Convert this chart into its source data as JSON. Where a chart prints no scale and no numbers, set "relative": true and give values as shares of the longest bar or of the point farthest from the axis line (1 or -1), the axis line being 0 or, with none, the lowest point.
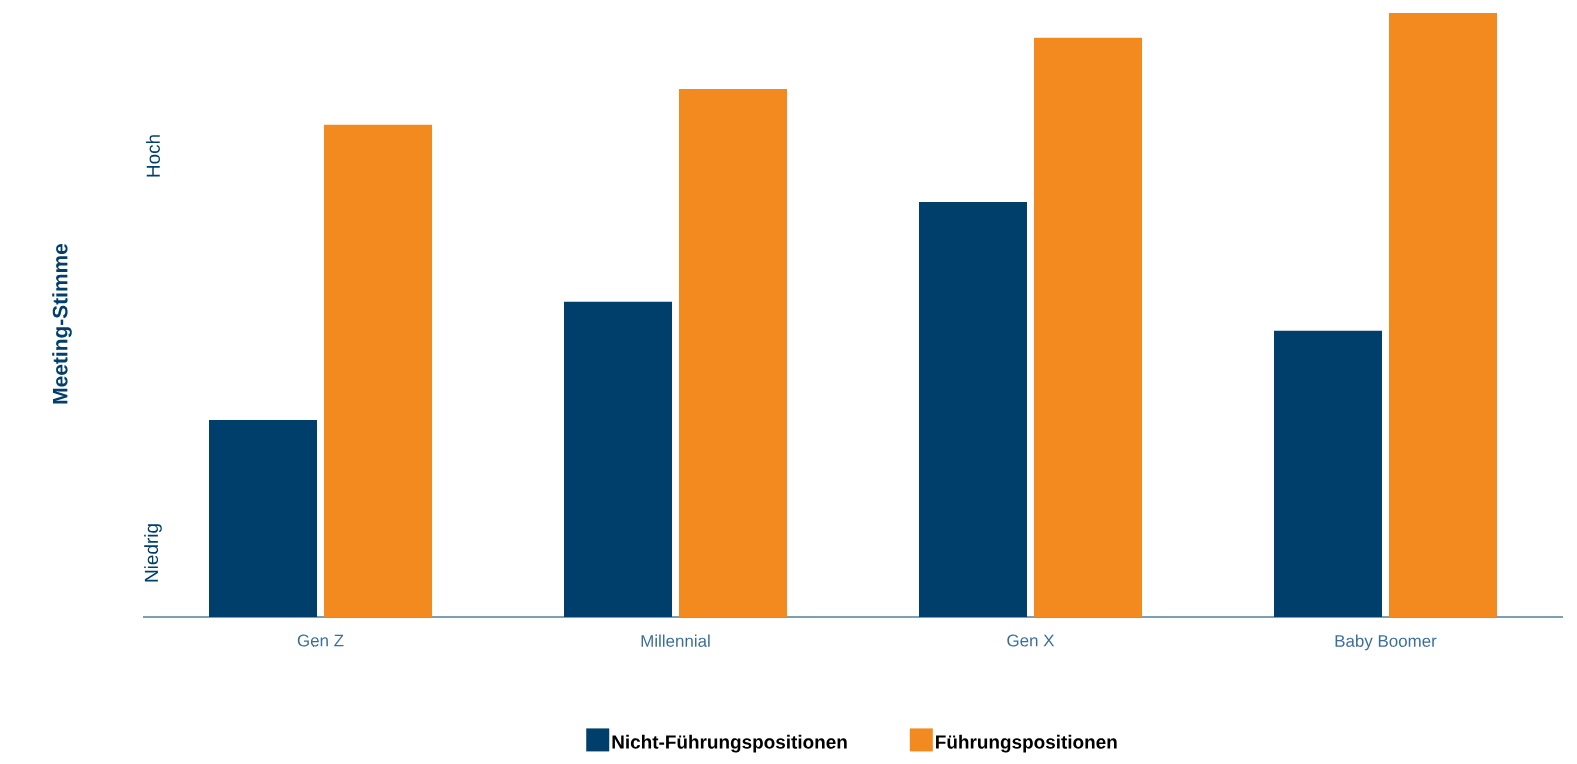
{
  "chart_data": {
    "type": "bar",
    "relative": true,
    "ylabel": "Meeting-Stimme",
    "categories": [
      "Gen Z",
      "Millennial",
      "Gen X",
      "Baby Boomer"
    ],
    "series": [
      {
        "name": "Nicht-Führungspositionen",
        "color": "#003f6b",
        "values": [
          0.326,
          0.522,
          0.687,
          0.474
        ]
      },
      {
        "name": "Führungspositionen",
        "color": "#f28a20",
        "values": [
          0.815,
          0.874,
          0.959,
          1.0
        ]
      }
    ],
    "annotations": [
      "Hoch",
      "Niedrig"
    ],
    "legend": "bottom"
  }
}
